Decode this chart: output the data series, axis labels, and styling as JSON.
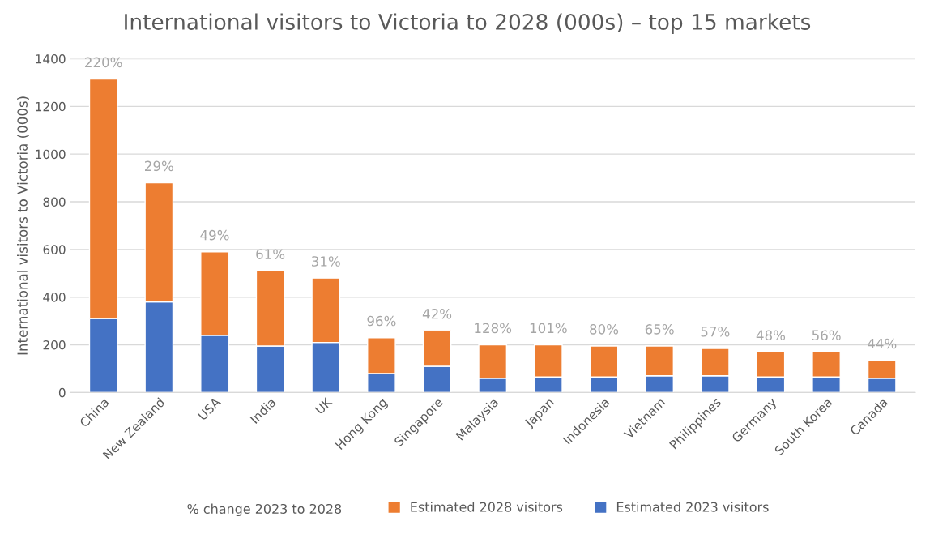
{
  "chart_data": {
    "type": "bar",
    "stacked": true,
    "title": "International visitors to Victoria to 2028 (000s) – top 15 markets",
    "ylabel": "International visitors to Victoria (000s)",
    "categories": [
      "China",
      "New Zealand",
      "USA",
      "India",
      "UK",
      "Hong Kong",
      "Singapore",
      "Malaysia",
      "Japan",
      "Indonesia",
      "Vietnam",
      "Philippines",
      "Germany",
      "South Korea",
      "Canada"
    ],
    "series": [
      {
        "name": "Estimated 2023 visitors",
        "color": "#4472c4",
        "values": [
          310,
          380,
          240,
          195,
          210,
          80,
          110,
          60,
          65,
          65,
          70,
          70,
          65,
          65,
          60
        ]
      },
      {
        "name": "Estimated 2028 visitors",
        "color": "#ed7d31",
        "values": [
          1005,
          500,
          350,
          315,
          270,
          150,
          150,
          140,
          135,
          130,
          125,
          115,
          105,
          105,
          75
        ]
      }
    ],
    "annotations": [
      "% change 2023 to 2028",
      {
        "text": "220%",
        "x": "China",
        "y": 1315
      },
      {
        "text": "29%",
        "x": "New Zealand",
        "y": 880
      },
      {
        "text": "49%",
        "x": "USA",
        "y": 590
      },
      {
        "text": "61%",
        "x": "India",
        "y": 510
      },
      {
        "text": "31%",
        "x": "UK",
        "y": 480
      },
      {
        "text": "96%",
        "x": "Hong Kong",
        "y": 230
      },
      {
        "text": "42%",
        "x": "Singapore",
        "y": 260
      },
      {
        "text": "128%",
        "x": "Malaysia",
        "y": 200
      },
      {
        "text": "101%",
        "x": "Japan",
        "y": 200
      },
      {
        "text": "80%",
        "x": "Indonesia",
        "y": 195
      },
      {
        "text": "65%",
        "x": "Vietnam",
        "y": 195
      },
      {
        "text": "57%",
        "x": "Philippines",
        "y": 185
      },
      {
        "text": "48%",
        "x": "Germany",
        "y": 170
      },
      {
        "text": "56%",
        "x": "South Korea",
        "y": 170
      },
      {
        "text": "44%",
        "x": "Canada",
        "y": 135
      }
    ],
    "ylim": [
      0,
      1400
    ],
    "yticks": [
      0,
      200,
      400,
      600,
      800,
      1000,
      1200,
      1400
    ],
    "grid": "y",
    "legend": "bottom"
  }
}
